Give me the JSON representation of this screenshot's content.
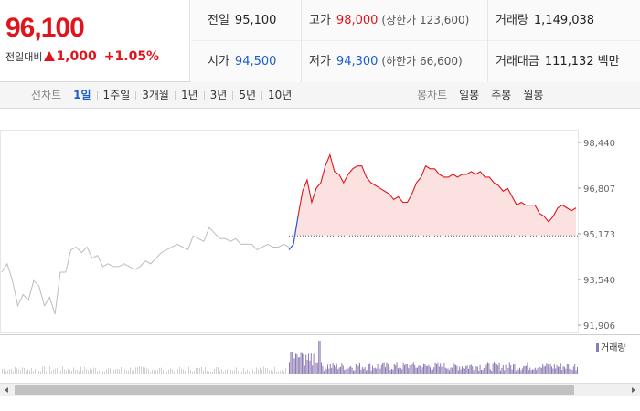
{
  "quote": {
    "price": "96,100",
    "change_label": "전일대비",
    "change_value": "1,000",
    "change_pct": "+1.05%",
    "stats": {
      "prev_close": {
        "label": "전일",
        "value": "95,100"
      },
      "high": {
        "label": "고가",
        "value": "98,000",
        "sub": "(상한가 123,600)"
      },
      "volume": {
        "label": "거래량",
        "value": "1,149,038"
      },
      "open": {
        "label": "시가",
        "value": "94,500"
      },
      "low": {
        "label": "저가",
        "value": "94,300",
        "sub": "(하한가 66,600)"
      },
      "amount": {
        "label": "거래대금",
        "value": "111,132",
        "unit": "백만"
      }
    }
  },
  "toolbar": {
    "line_label": "선차트",
    "line_periods": [
      "1일",
      "1주일",
      "3개월",
      "1년",
      "3년",
      "5년",
      "10년"
    ],
    "active_period": "1일",
    "candle_label": "봉차트",
    "candle_periods": [
      "일봉",
      "주봉",
      "월봉"
    ]
  },
  "colors": {
    "up": "#e0151b",
    "down": "#1e5ecb",
    "prev_day_line": "#bdbdbd",
    "volume": "#8e7ab5"
  },
  "chart_data": {
    "type": "line",
    "y_ticks": [
      "98,440",
      "96,807",
      "95,173",
      "93,540",
      "91,906"
    ],
    "ylim": [
      91906,
      98440
    ],
    "base_price": 95100,
    "legend": "거래량",
    "prev_day_series": [
      93800,
      94100,
      93500,
      92600,
      93000,
      92800,
      93500,
      93300,
      92600,
      92900,
      92300,
      93800,
      93800,
      94600,
      94700,
      94500,
      94700,
      94300,
      94400,
      94000,
      94100,
      94000,
      94000,
      94100,
      94000,
      93900,
      94000,
      94200,
      94100,
      94300,
      94500,
      94600,
      94700,
      94800,
      94700,
      94600,
      95100,
      95000,
      94900,
      95400,
      95200,
      95000,
      95000,
      94900,
      95000,
      94800,
      94800,
      94800,
      94600,
      94700,
      94800,
      94700,
      94700,
      94800,
      94700
    ],
    "today_series": [
      94600,
      94800,
      95800,
      96700,
      97100,
      96300,
      96800,
      97000,
      97600,
      98000,
      97400,
      97300,
      97000,
      97300,
      97500,
      97600,
      97600,
      97200,
      97000,
      96900,
      96800,
      96700,
      96600,
      96400,
      96500,
      96300,
      96300,
      96600,
      97000,
      97200,
      97600,
      97500,
      97500,
      97300,
      97200,
      97200,
      97300,
      97200,
      97300,
      97300,
      97400,
      97300,
      97400,
      97200,
      97200,
      97000,
      96900,
      96700,
      96800,
      96500,
      96200,
      96300,
      96200,
      96200,
      96200,
      95900,
      95800,
      95600,
      95800,
      96100,
      96200,
      96100,
      96000,
      96100
    ]
  }
}
